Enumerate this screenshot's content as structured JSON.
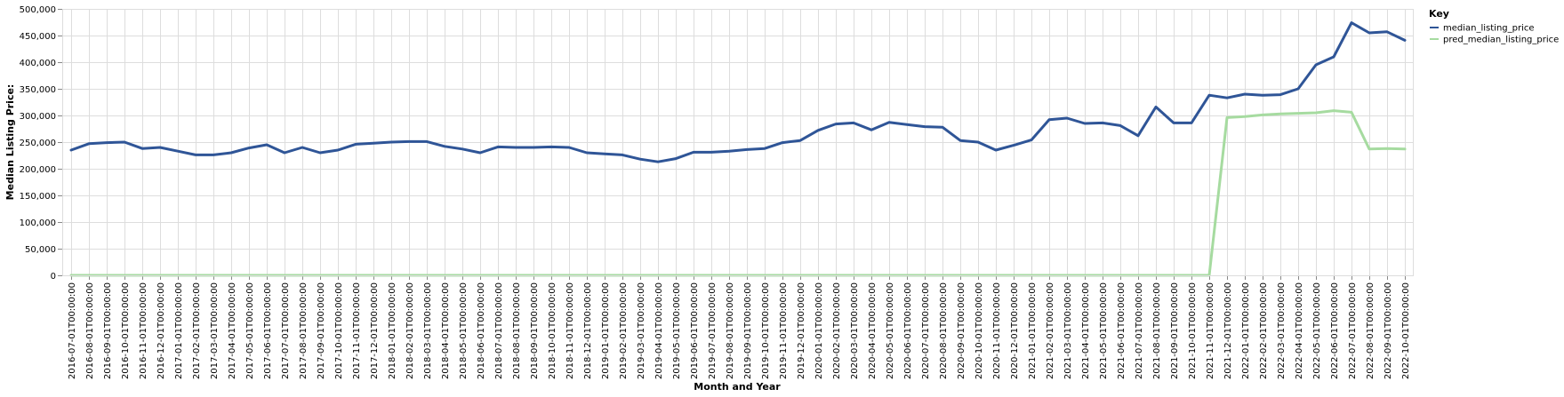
{
  "chart_data": {
    "type": "line",
    "xlabel": "Month and Year",
    "ylabel": "Median Listing Price:",
    "ylim": [
      0,
      500000
    ],
    "yticks": [
      0,
      50000,
      100000,
      150000,
      200000,
      250000,
      300000,
      350000,
      400000,
      450000,
      500000
    ],
    "ytick_labels": [
      "0",
      "50,000",
      "100,000",
      "150,000",
      "200,000",
      "250,000",
      "300,000",
      "350,000",
      "400,000",
      "450,000",
      "500,000"
    ],
    "grid": true,
    "legend": {
      "title": "Key",
      "placement": "top-right"
    },
    "x": [
      "2016-07-01T00:00:00",
      "2016-08-01T00:00:00",
      "2016-09-01T00:00:00",
      "2016-10-01T00:00:00",
      "2016-11-01T00:00:00",
      "2016-12-01T00:00:00",
      "2017-01-01T00:00:00",
      "2017-02-01T00:00:00",
      "2017-03-01T00:00:00",
      "2017-04-01T00:00:00",
      "2017-05-01T00:00:00",
      "2017-06-01T00:00:00",
      "2017-07-01T00:00:00",
      "2017-08-01T00:00:00",
      "2017-09-01T00:00:00",
      "2017-10-01T00:00:00",
      "2017-11-01T00:00:00",
      "2017-12-01T00:00:00",
      "2018-01-01T00:00:00",
      "2018-02-01T00:00:00",
      "2018-03-01T00:00:00",
      "2018-04-01T00:00:00",
      "2018-05-01T00:00:00",
      "2018-06-01T00:00:00",
      "2018-07-01T00:00:00",
      "2018-08-01T00:00:00",
      "2018-09-01T00:00:00",
      "2018-10-01T00:00:00",
      "2018-11-01T00:00:00",
      "2018-12-01T00:00:00",
      "2019-01-01T00:00:00",
      "2019-02-01T00:00:00",
      "2019-03-01T00:00:00",
      "2019-04-01T00:00:00",
      "2019-05-01T00:00:00",
      "2019-06-01T00:00:00",
      "2019-07-01T00:00:00",
      "2019-08-01T00:00:00",
      "2019-09-01T00:00:00",
      "2019-10-01T00:00:00",
      "2019-11-01T00:00:00",
      "2019-12-01T00:00:00",
      "2020-01-01T00:00:00",
      "2020-02-01T00:00:00",
      "2020-03-01T00:00:00",
      "2020-04-01T00:00:00",
      "2020-05-01T00:00:00",
      "2020-06-01T00:00:00",
      "2020-07-01T00:00:00",
      "2020-08-01T00:00:00",
      "2020-09-01T00:00:00",
      "2020-10-01T00:00:00",
      "2020-11-01T00:00:00",
      "2020-12-01T00:00:00",
      "2021-01-01T00:00:00",
      "2021-02-01T00:00:00",
      "2021-03-01T00:00:00",
      "2021-04-01T00:00:00",
      "2021-05-01T00:00:00",
      "2021-06-01T00:00:00",
      "2021-07-01T00:00:00",
      "2021-08-01T00:00:00",
      "2021-09-01T00:00:00",
      "2021-10-01T00:00:00",
      "2021-11-01T00:00:00",
      "2021-12-01T00:00:00",
      "2022-01-01T00:00:00",
      "2022-02-01T00:00:00",
      "2022-03-01T00:00:00",
      "2022-04-01T00:00:00",
      "2022-05-01T00:00:00",
      "2022-06-01T00:00:00",
      "2022-07-01T00:00:00",
      "2022-08-01T00:00:00",
      "2022-09-01T00:00:00",
      "2022-10-01T00:00:00"
    ],
    "series": [
      {
        "name": "median_listing_price",
        "color": "#2f5597",
        "values": [
          235000,
          247000,
          249000,
          250000,
          238000,
          240000,
          233000,
          226000,
          226000,
          230000,
          239000,
          245000,
          230000,
          240000,
          230000,
          235000,
          246000,
          248000,
          250000,
          251000,
          251000,
          242000,
          237000,
          230000,
          241000,
          240000,
          240000,
          241000,
          240000,
          230000,
          228000,
          226000,
          218000,
          213000,
          219000,
          231000,
          231000,
          233000,
          236000,
          238000,
          249000,
          253000,
          272000,
          284000,
          286000,
          273000,
          287000,
          283000,
          279000,
          278000,
          253000,
          250000,
          235000,
          244000,
          254000,
          292000,
          295000,
          285000,
          286000,
          281000,
          262000,
          316000,
          286000,
          286000,
          338000,
          333000,
          340000,
          338000,
          339000,
          350000,
          395000,
          410000,
          474000,
          455000,
          457000,
          441000
        ]
      },
      {
        "name": "pred_median_listing_price",
        "color": "#a6dba0",
        "values": [
          0,
          0,
          0,
          0,
          0,
          0,
          0,
          0,
          0,
          0,
          0,
          0,
          0,
          0,
          0,
          0,
          0,
          0,
          0,
          0,
          0,
          0,
          0,
          0,
          0,
          0,
          0,
          0,
          0,
          0,
          0,
          0,
          0,
          0,
          0,
          0,
          0,
          0,
          0,
          0,
          0,
          0,
          0,
          0,
          0,
          0,
          0,
          0,
          0,
          0,
          0,
          0,
          0,
          0,
          0,
          0,
          0,
          0,
          0,
          0,
          0,
          0,
          0,
          0,
          0,
          296000,
          298000,
          301000,
          303000,
          304000,
          305000,
          309000,
          306000,
          237000,
          238000,
          237000
        ]
      }
    ]
  }
}
